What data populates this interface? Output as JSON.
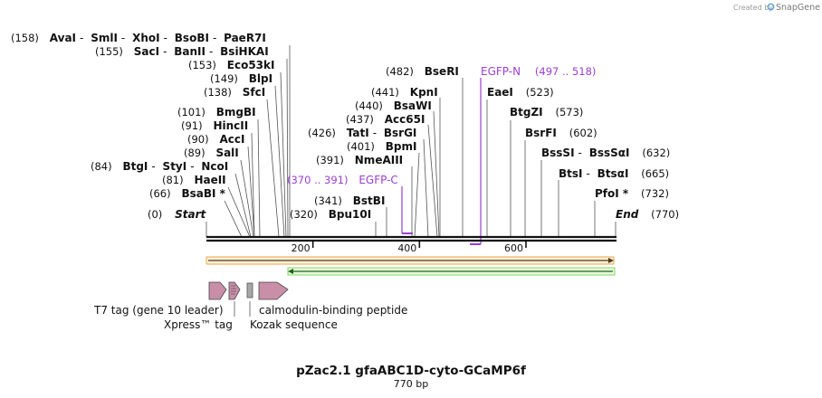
{
  "brand": {
    "created_by": "Created by",
    "name": "SnapGene",
    "accent": "#5aa0d6"
  },
  "title": "pZac2.1 gfaABC1D-cyto-GCaMP6f",
  "subtitle": "770 bp",
  "sequence_length": 770,
  "axis": {
    "ticks": [
      {
        "value": 200,
        "label": "200"
      },
      {
        "value": 400,
        "label": "400"
      },
      {
        "value": 600,
        "label": "600"
      }
    ]
  },
  "colors": {
    "line": "#111111",
    "orange": "#e8a64a",
    "green": "#1e7f1e",
    "pink": "#c98fa8",
    "purple": "#9b3fd0"
  },
  "sites_left": [
    {
      "pos": "(158)",
      "names": [
        "AvaI",
        "SmlI",
        "XhoI",
        "BsoBI",
        "PaeR7I"
      ],
      "bp": 158
    },
    {
      "pos": "(155)",
      "names": [
        "SacI",
        "BanII",
        "BsiHKAI"
      ],
      "bp": 155
    },
    {
      "pos": "(153)",
      "names": [
        "Eco53kI"
      ],
      "bp": 153
    },
    {
      "pos": "(149)",
      "names": [
        "BlpI"
      ],
      "bp": 149
    },
    {
      "pos": "(138)",
      "names": [
        "SfcI"
      ],
      "bp": 138
    },
    {
      "pos": "(101)",
      "names": [
        "BmgBI"
      ],
      "bp": 101
    },
    {
      "pos": "(91)",
      "names": [
        "HincII"
      ],
      "bp": 91
    },
    {
      "pos": "(90)",
      "names": [
        "AccI"
      ],
      "bp": 90
    },
    {
      "pos": "(89)",
      "names": [
        "SalI"
      ],
      "bp": 89
    },
    {
      "pos": "(84)",
      "names": [
        "BtgI",
        "StyI",
        "NcoI"
      ],
      "bp": 84
    },
    {
      "pos": "(81)",
      "names": [
        "HaeII"
      ],
      "bp": 81
    },
    {
      "pos": "(66)",
      "names": [
        "BsaBI *"
      ],
      "bp": 66
    },
    {
      "pos": "(0)",
      "names": [
        "Start"
      ],
      "bp": 0
    }
  ],
  "sites_mid": [
    {
      "pos": "(482)",
      "names": [
        "BseRI"
      ],
      "bp": 482
    },
    {
      "pos": "(441)",
      "names": [
        "KpnI"
      ],
      "bp": 441
    },
    {
      "pos": "(440)",
      "names": [
        "BsaWI"
      ],
      "bp": 440
    },
    {
      "pos": "(437)",
      "names": [
        "Acc65I"
      ],
      "bp": 437
    },
    {
      "pos": "(426)",
      "names": [
        "TatI",
        "BsrGI"
      ],
      "bp": 426
    },
    {
      "pos": "(401)",
      "names": [
        "BpmI"
      ],
      "bp": 401
    },
    {
      "pos": "(391)",
      "names": [
        "NmeAIII"
      ],
      "bp": 391
    },
    {
      "pos": "(341)",
      "names": [
        "BstBI"
      ],
      "bp": 341
    },
    {
      "pos": "(320)",
      "names": [
        "Bpu10I"
      ],
      "bp": 320
    }
  ],
  "sites_right": [
    {
      "pos": "(523)",
      "names": [
        "EaeI"
      ],
      "bp": 523
    },
    {
      "pos": "(573)",
      "names": [
        "BtgZI"
      ],
      "bp": 573
    },
    {
      "pos": "(602)",
      "names": [
        "BsrFI"
      ],
      "bp": 602
    },
    {
      "pos": "(632)",
      "names": [
        "BssSI",
        "BssSαI"
      ],
      "bp": 632
    },
    {
      "pos": "(665)",
      "names": [
        "BtsI",
        "BtsαI"
      ],
      "bp": 665
    },
    {
      "pos": "(732)",
      "names": [
        "PfoI *"
      ],
      "bp": 732
    },
    {
      "pos": "(770)",
      "names": [
        "End"
      ],
      "bp": 770
    }
  ],
  "primers": [
    {
      "name": "EGFP-N",
      "range": "(497 .. 518)",
      "start": 497,
      "end": 518
    },
    {
      "name": "EGFP-C",
      "range": "(370 .. 391)",
      "start": 370,
      "end": 391
    }
  ],
  "tracks": {
    "orange_bar": {
      "start": 1,
      "end": 770
    },
    "green_arrow": {
      "start": 155,
      "end": 770
    }
  },
  "features": [
    {
      "label": "T7 tag (gene 10 leader)"
    },
    {
      "label": "Xpress™ tag"
    },
    {
      "label": "Kozak sequence"
    },
    {
      "label": "calmodulin-binding peptide"
    }
  ]
}
